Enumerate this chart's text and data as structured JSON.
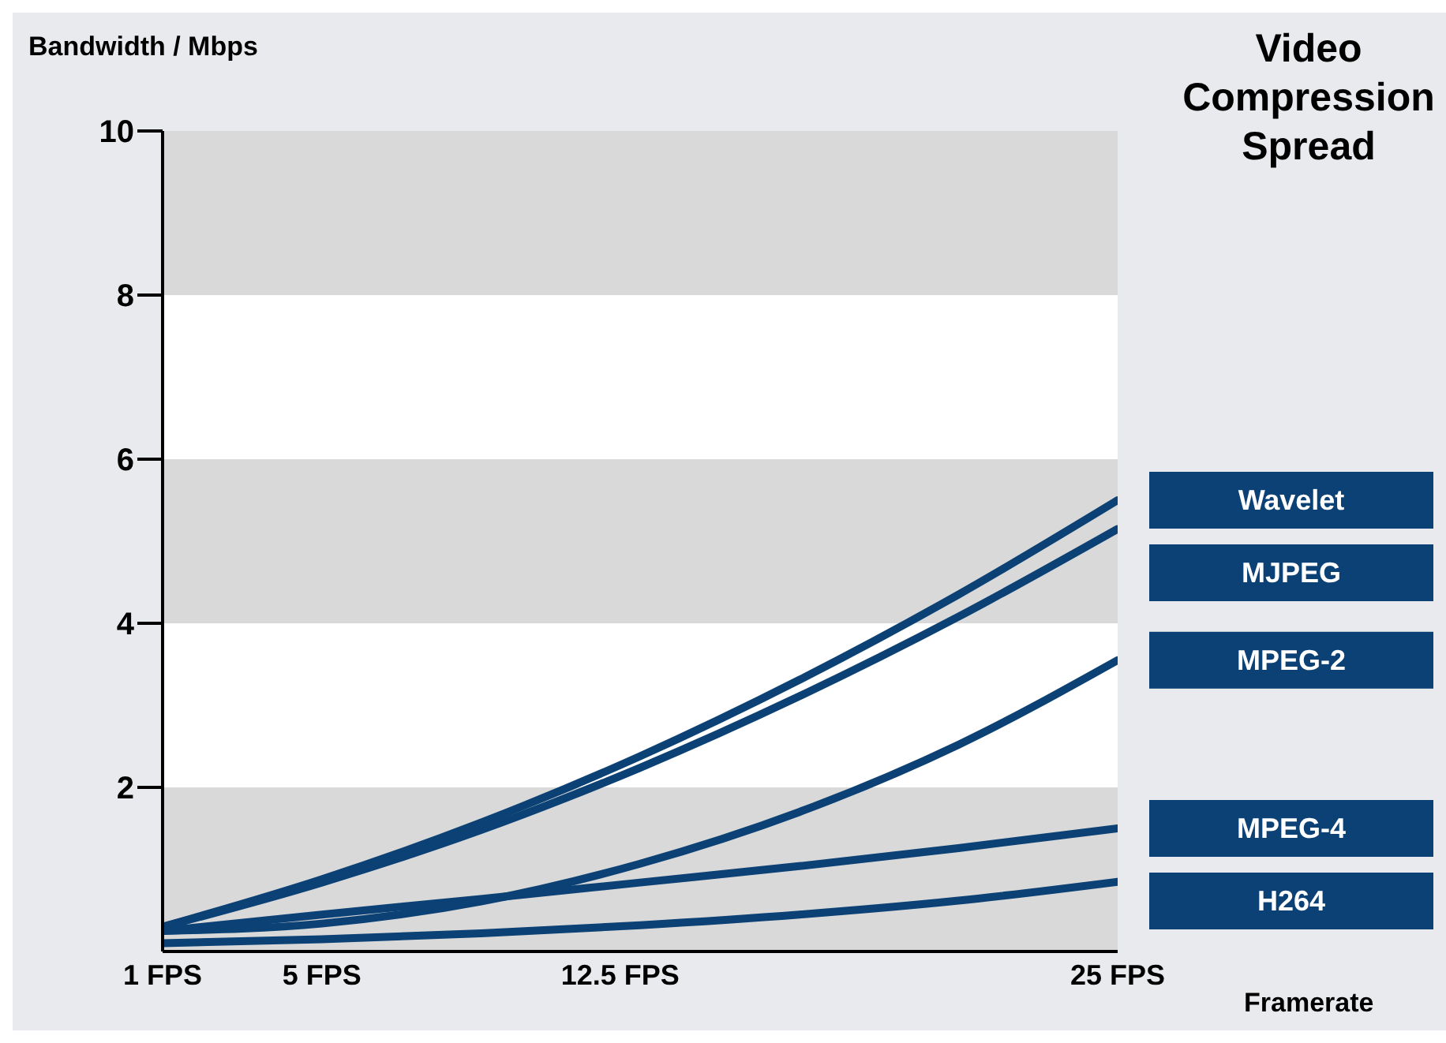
{
  "chart_data": {
    "type": "line",
    "title": "Video Compression Spread",
    "xlabel": "Framerate",
    "ylabel": "Bandwidth / Mbps",
    "x": [
      1,
      5,
      9,
      13,
      17,
      21,
      25
    ],
    "series": [
      {
        "name": "Wavelet",
        "color": "#0b4174",
        "values": [
          0.3,
          0.88,
          1.57,
          2.38,
          3.31,
          4.35,
          5.5
        ]
      },
      {
        "name": "MJPEG",
        "color": "#0b4174",
        "values": [
          0.3,
          0.84,
          1.48,
          2.24,
          3.11,
          4.08,
          5.15
        ]
      },
      {
        "name": "MPEG-2",
        "color": "#0b4174",
        "values": [
          0.25,
          0.34,
          0.61,
          1.07,
          1.7,
          2.52,
          3.55
        ]
      },
      {
        "name": "MPEG-4",
        "color": "#0b4174",
        "values": [
          0.25,
          0.45,
          0.64,
          0.84,
          1.04,
          1.26,
          1.5
        ]
      },
      {
        "name": "H264",
        "color": "#0b4174",
        "values": [
          0.1,
          0.15,
          0.22,
          0.32,
          0.45,
          0.62,
          0.85
        ]
      }
    ],
    "xlim": [
      1,
      25
    ],
    "xticks": [
      {
        "value": 1,
        "label": "1 FPS"
      },
      {
        "value": 5,
        "label": "5 FPS"
      },
      {
        "value": 12.5,
        "label": "12.5 FPS"
      },
      {
        "value": 25,
        "label": "25 FPS"
      }
    ],
    "ylim": [
      0,
      10
    ],
    "yticks": [
      2,
      4,
      6,
      8,
      10
    ],
    "bands": [
      {
        "axis": "y",
        "from": 0,
        "to": 2,
        "color": "#d9d9d9"
      },
      {
        "axis": "y",
        "from": 4,
        "to": 6,
        "color": "#d9d9d9"
      },
      {
        "axis": "y",
        "from": 8,
        "to": 10,
        "color": "#d9d9d9"
      }
    ],
    "grid": false,
    "marker": "none",
    "line_style": "solid"
  }
}
